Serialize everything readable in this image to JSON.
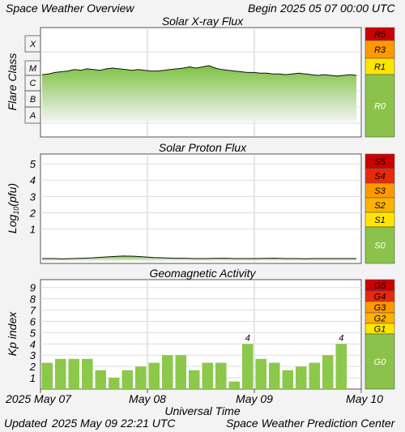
{
  "header": {
    "title": "Space Weather Overview",
    "begin_label": "Begin",
    "begin_value": "2025 05 07 00:00 UTC"
  },
  "footer": {
    "updated_label": "Updated",
    "updated_value": "2025 May 09 22:21 UTC",
    "center": "Space Weather Prediction Center"
  },
  "colors": {
    "background": "#f3f3f3",
    "green": "#8bc34a",
    "bar_green": "#8cc84a",
    "yellow": "#ffe500",
    "orange": "#ff9900",
    "light_orange": "#ffb300",
    "red": "#e8290b",
    "dark_red": "#cc0000"
  },
  "chart_data": [
    {
      "type": "line",
      "title": "Solar X-ray Flux",
      "ylabel": "Flare Class",
      "y_classes": [
        "X",
        "M",
        "C",
        "B",
        "A"
      ],
      "scale_labels": [
        {
          "label": "R5",
          "color": "#cc0000"
        },
        {
          "label": "R3",
          "color": "#ff9900"
        },
        {
          "label": "R1",
          "color": "#ffe500"
        },
        {
          "label": "R0",
          "color": "#8bc34a"
        }
      ],
      "series_class_position": [
        2.55,
        2.6,
        2.7,
        2.75,
        2.8,
        2.9,
        2.85,
        2.95,
        2.9,
        2.85,
        2.95,
        3.0,
        2.95,
        2.9,
        2.85,
        2.9,
        2.85,
        2.8,
        2.8,
        2.85,
        2.9,
        2.95,
        3.0,
        3.05,
        3.0,
        3.05,
        3.1,
        3.0,
        2.9,
        2.85,
        2.8,
        2.75,
        2.7,
        2.7,
        2.65,
        2.65,
        2.6,
        2.6,
        2.55,
        2.6,
        2.65,
        2.6,
        2.55,
        2.5,
        2.55,
        2.5,
        2.45,
        2.5,
        2.55,
        2.5
      ],
      "x_ticks": [
        "2025 May 07",
        "May 08",
        "May 09",
        "May 10"
      ],
      "xlim_days": [
        0,
        3
      ]
    },
    {
      "type": "line",
      "title": "Solar Proton Flux",
      "ylabel": "Log10(pfu)",
      "yticks": [
        "5",
        "4",
        "3",
        "2",
        "1"
      ],
      "scale_labels": [
        {
          "label": "S5",
          "color": "#cc0000"
        },
        {
          "label": "S4",
          "color": "#e8290b"
        },
        {
          "label": "S3",
          "color": "#ff9900"
        },
        {
          "label": "S2",
          "color": "#ffb300"
        },
        {
          "label": "S1",
          "color": "#ffe500"
        },
        {
          "label": "S0",
          "color": "#8bc34a"
        }
      ],
      "series_log10": [
        -0.8,
        -0.8,
        -0.82,
        -0.8,
        -0.78,
        -0.76,
        -0.72,
        -0.68,
        -0.65,
        -0.66,
        -0.7,
        -0.74,
        -0.76,
        -0.78,
        -0.78,
        -0.8,
        -0.8,
        -0.79,
        -0.78,
        -0.8,
        -0.8,
        -0.8,
        -0.79,
        -0.78,
        -0.8,
        -0.8,
        -0.81,
        -0.8,
        -0.8,
        -0.8,
        -0.8,
        -0.8
      ],
      "ylim": [
        -1.1,
        5.6
      ]
    },
    {
      "type": "bar",
      "title": "Geomagnetic Activity",
      "ylabel": "Kp index",
      "yticks": [
        "9",
        "8",
        "7",
        "6",
        "5",
        "4",
        "3",
        "2",
        "1"
      ],
      "ylim": [
        0,
        9.7
      ],
      "scale_labels": [
        {
          "label": "G5",
          "color": "#cc0000"
        },
        {
          "label": "G4",
          "color": "#e8290b"
        },
        {
          "label": "G3",
          "color": "#ff9900"
        },
        {
          "label": "G2",
          "color": "#ffb300"
        },
        {
          "label": "G1",
          "color": "#ffe500"
        },
        {
          "label": "G0",
          "color": "#8bc34a"
        }
      ],
      "values": [
        2.33,
        2.67,
        2.67,
        2.67,
        1.67,
        1.0,
        1.67,
        2.0,
        2.33,
        3.0,
        3.0,
        1.67,
        2.33,
        2.33,
        0.67,
        4.0,
        2.67,
        2.33,
        1.67,
        2.0,
        2.33,
        3.0,
        4.0
      ],
      "bar_labels": [
        {
          "index": 15,
          "text": "4"
        },
        {
          "index": 22,
          "text": "4"
        }
      ],
      "xlabel": "Universal Time",
      "x_ticks": [
        "2025 May 07",
        "May 08",
        "May 09",
        "May 10"
      ]
    }
  ]
}
